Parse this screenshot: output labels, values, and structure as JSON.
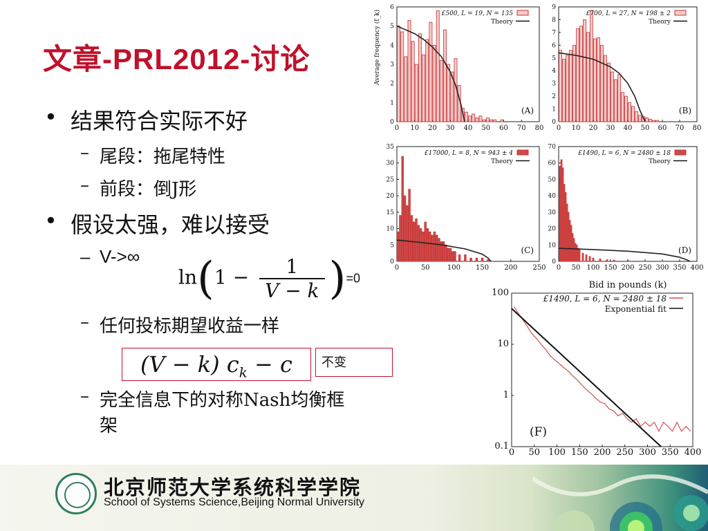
{
  "slide": {
    "title_cn1": "文章",
    "title_latin": "-PRL2012-",
    "title_cn2": "讨论",
    "bullets": {
      "b1": "结果符合实际不好",
      "b1_s1": "尾段：拖尾特性",
      "b1_s2": "前段：倒J形",
      "b2": "假设太强，难以接受",
      "b2_s1": "V->∞",
      "b2_s2": "任何投标期望收益一样",
      "b2_s3": "完全信息下的对称Nash均衡框架"
    },
    "formula1": {
      "ln": "ln",
      "one": "1",
      "minus": "−",
      "num": "1",
      "den": "V − k",
      "eq": "=0"
    },
    "formula2": "(V − k) c",
    "formula2_sub": "k",
    "formula2_tail": " − c",
    "formula2_note": "不变",
    "footer": {
      "university_cn": "北京师范大学系统科学学院",
      "university_en": "School of Systems Science,Beijing Normal University"
    }
  },
  "chart_data": [
    {
      "type": "bar",
      "panel": "(A)",
      "legend": [
        "£500, L = 19, N = 135",
        "Theory"
      ],
      "ylabel": "Average frequency (f_k)",
      "xlim": [
        0,
        80
      ],
      "ylim": [
        0,
        6
      ],
      "xticks": [
        0,
        10,
        20,
        30,
        40,
        50,
        60,
        70,
        80
      ],
      "yticks": [
        0,
        1,
        2,
        3,
        4,
        5,
        6
      ],
      "x": [
        1,
        3,
        5,
        7,
        9,
        11,
        13,
        15,
        17,
        19,
        21,
        23,
        25,
        27,
        29,
        31,
        33,
        35,
        37,
        39,
        41,
        43,
        45,
        47,
        49,
        51,
        53,
        55,
        57,
        59
      ],
      "values": [
        5.0,
        4.7,
        3.4,
        5.3,
        4.2,
        3.0,
        4.6,
        3.5,
        4.3,
        5.2,
        4.0,
        5.8,
        3.2,
        4.8,
        3.0,
        2.6,
        3.3,
        1.9,
        0.7,
        0.5,
        0.3,
        0.4,
        0.2,
        0.3,
        0.1,
        0.2,
        0.1,
        0.1,
        0.0,
        0.1
      ],
      "theory_x": [
        0,
        5,
        10,
        15,
        20,
        25,
        30,
        33,
        36,
        38
      ],
      "theory_y": [
        5.0,
        4.8,
        4.6,
        4.3,
        3.9,
        3.4,
        2.6,
        1.9,
        0.9,
        0.0
      ]
    },
    {
      "type": "bar",
      "panel": "(B)",
      "legend": [
        "£700, L = 27, N = 198 ± 2",
        "Theory"
      ],
      "xlim": [
        0,
        80
      ],
      "ylim": [
        0,
        9
      ],
      "xticks": [
        0,
        10,
        20,
        30,
        40,
        50,
        60,
        70,
        80
      ],
      "yticks": [
        0,
        1,
        2,
        3,
        4,
        5,
        6,
        7,
        8,
        9
      ],
      "x": [
        1,
        3,
        5,
        7,
        9,
        11,
        13,
        15,
        17,
        19,
        21,
        23,
        25,
        27,
        29,
        31,
        33,
        35,
        37,
        39,
        41,
        43,
        45,
        47,
        49,
        51,
        53,
        55,
        57
      ],
      "values": [
        5.6,
        4.9,
        5.2,
        5.6,
        6.0,
        7.3,
        7.5,
        8.0,
        7.0,
        8.7,
        6.5,
        6.6,
        6.0,
        5.2,
        4.6,
        3.9,
        3.3,
        3.7,
        2.3,
        2.0,
        1.5,
        1.2,
        0.8,
        0.5,
        0.4,
        0.3,
        0.2,
        0.1,
        0.1
      ],
      "theory_x": [
        0,
        10,
        20,
        30,
        35,
        40,
        44,
        47,
        50
      ],
      "theory_y": [
        5.4,
        5.2,
        4.9,
        4.3,
        3.8,
        3.0,
        2.0,
        0.9,
        0.0
      ]
    },
    {
      "type": "bar",
      "panel": "(C)",
      "legend": [
        "£17000, L = 8, N = 943 ± 4",
        "Theory"
      ],
      "xlim": [
        0,
        250
      ],
      "ylim": [
        0,
        35
      ],
      "xticks": [
        0,
        50,
        100,
        150,
        200,
        250
      ],
      "yticks": [
        0,
        5,
        10,
        15,
        20,
        25,
        30,
        35
      ],
      "x": [
        2,
        6,
        10,
        14,
        18,
        22,
        26,
        30,
        34,
        38,
        42,
        46,
        50,
        54,
        58,
        62,
        66,
        70,
        74,
        78,
        82,
        86,
        90,
        94,
        98,
        102,
        110,
        120,
        130,
        140,
        150,
        160
      ],
      "values": [
        9,
        14,
        32,
        20,
        17,
        22,
        14,
        12,
        13,
        11,
        10,
        9,
        12,
        10,
        9,
        8,
        9,
        8,
        7,
        6,
        6,
        5,
        4,
        4,
        3,
        3,
        2,
        2,
        1,
        1,
        1,
        0.5
      ],
      "theory_x": [
        0,
        40,
        80,
        120,
        150,
        160,
        165
      ],
      "theory_y": [
        6.5,
        5.8,
        5.0,
        3.8,
        2.2,
        1.0,
        0.0
      ]
    },
    {
      "type": "bar",
      "panel": "(D)",
      "legend": [
        "£1490, L = 6, N = 2480 ± 18",
        "Theory"
      ],
      "xlabel": "Bid in pounds (k)",
      "xlim": [
        0,
        400
      ],
      "ylim": [
        0,
        70
      ],
      "xticks": [
        0,
        50,
        100,
        150,
        200,
        250,
        300,
        350,
        400
      ],
      "yticks": [
        0,
        10,
        20,
        30,
        40,
        50,
        60,
        70
      ],
      "x": [
        4,
        8,
        12,
        16,
        20,
        24,
        28,
        32,
        36,
        40,
        44,
        48,
        52,
        56,
        60,
        70,
        80,
        90,
        100,
        120,
        140,
        160,
        200,
        250,
        300
      ],
      "values": [
        58,
        62,
        57,
        47,
        42,
        35,
        30,
        25,
        22,
        17,
        14,
        11,
        10,
        8,
        7,
        5,
        4,
        3,
        2,
        1.5,
        1,
        0.8,
        0.5,
        0.3,
        0.2
      ],
      "theory_x": [
        0,
        100,
        200,
        300,
        350,
        370,
        380
      ],
      "theory_y": [
        8,
        7.2,
        6.2,
        4.5,
        2.5,
        1.0,
        0.0
      ]
    },
    {
      "type": "line",
      "panel": "(F)",
      "legend": [
        "£1490, L = 6, N = 2480 ± 18",
        "Exponential fit"
      ],
      "xlabel": "Bid in pounds (k)",
      "yscale": "log",
      "xlim": [
        0,
        400
      ],
      "ylim": [
        0.1,
        100
      ],
      "xticks": [
        0,
        50,
        100,
        150,
        200,
        250,
        300,
        350,
        400
      ],
      "yticks": [
        0.1,
        1,
        10,
        100
      ],
      "series": [
        {
          "name": "£1490, L = 6, N = 2480 ± 18",
          "x": [
            5,
            15,
            25,
            35,
            45,
            55,
            65,
            75,
            85,
            95,
            105,
            115,
            125,
            135,
            145,
            155,
            165,
            175,
            185,
            195,
            205,
            215,
            225,
            235,
            245,
            255,
            265,
            275,
            285,
            295,
            305,
            315,
            325,
            335,
            345,
            355,
            365,
            375,
            385,
            395
          ],
          "values": [
            55,
            40,
            30,
            22,
            16,
            13,
            10,
            8,
            6,
            5,
            4.2,
            3.5,
            3.0,
            2.4,
            2.0,
            1.6,
            1.3,
            1.1,
            0.9,
            0.75,
            0.7,
            0.55,
            0.5,
            0.4,
            0.45,
            0.35,
            0.3,
            0.35,
            0.25,
            0.3,
            0.25,
            0.3,
            0.2,
            0.3,
            0.25,
            0.2,
            0.3,
            0.2,
            0.25,
            0.2
          ]
        },
        {
          "name": "Exponential fit",
          "x": [
            0,
            330
          ],
          "values": [
            50,
            0.1
          ]
        }
      ]
    }
  ]
}
